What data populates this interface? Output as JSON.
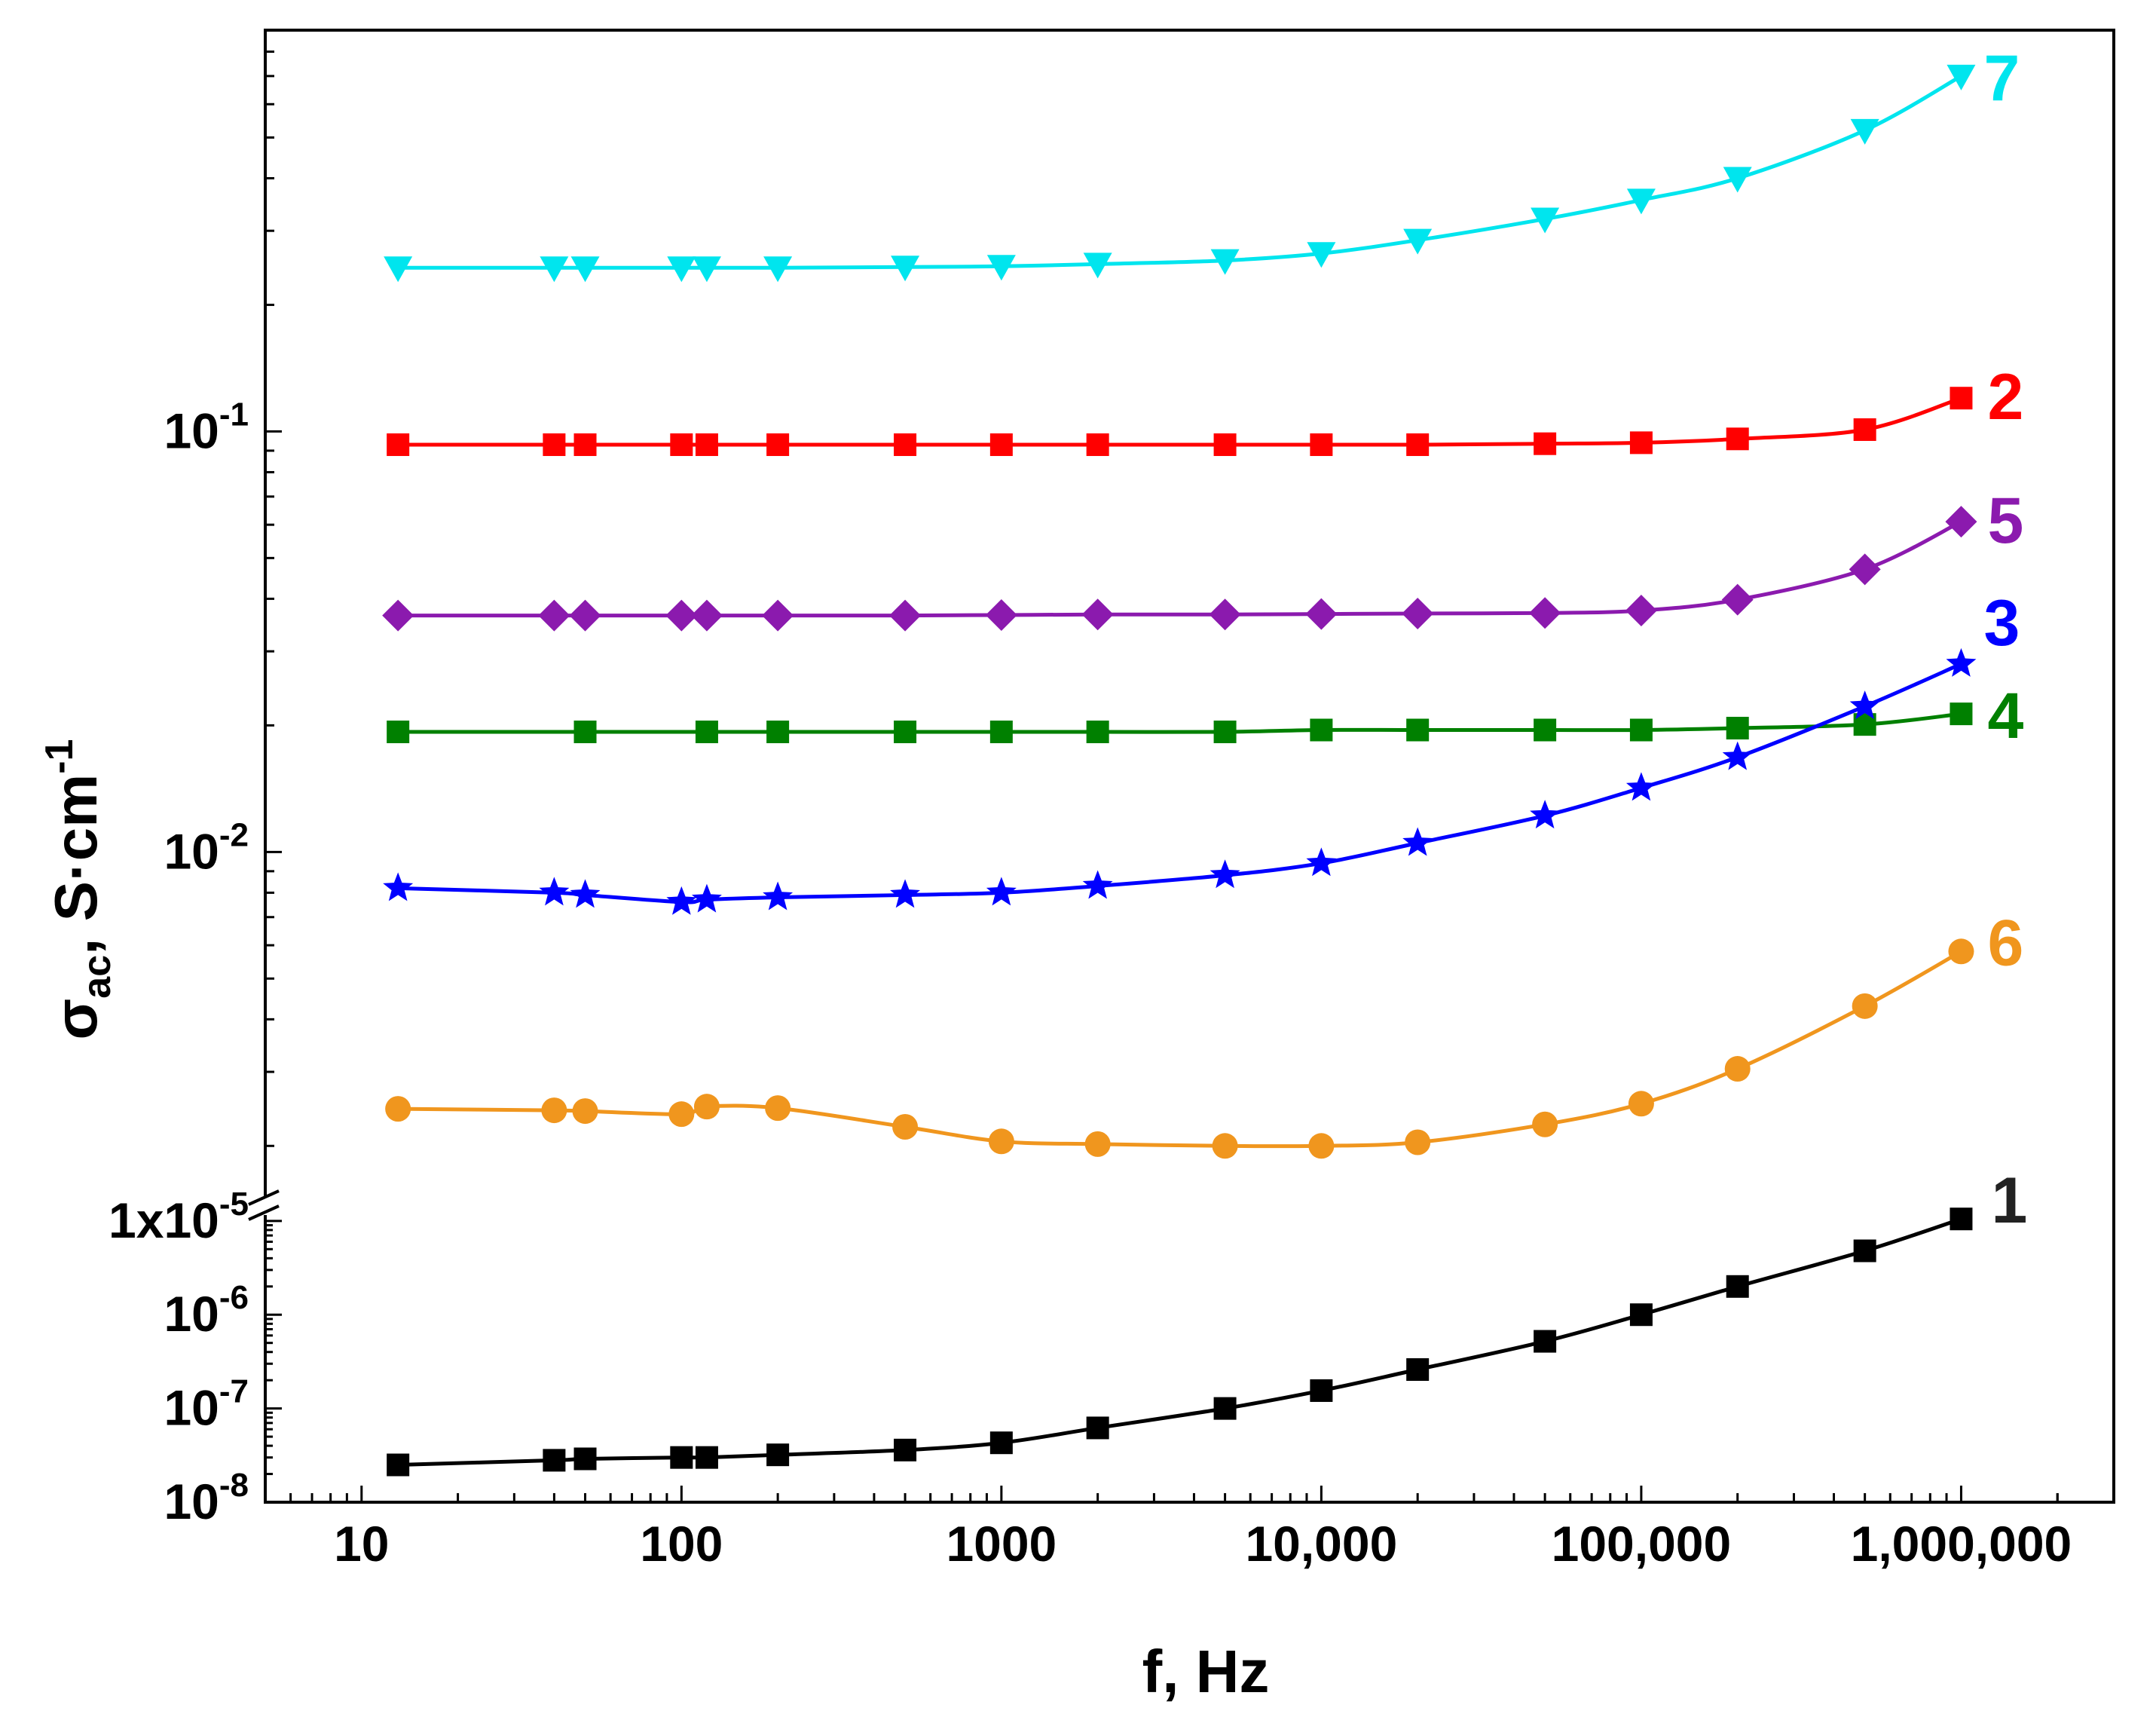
{
  "chart_data": {
    "type": "line",
    "title": "",
    "xlabel": "f, Hz",
    "ylabel": {
      "main": "σ",
      "sub": "ac",
      "rest": ", S·cm",
      "sup": "-1"
    },
    "xscale": "log",
    "yscale": "log (broken axis)",
    "xlim": [
      5,
      3000000
    ],
    "x_ticks": [
      {
        "value": 10,
        "label": "10"
      },
      {
        "value": 100,
        "label": "100"
      },
      {
        "value": 1000,
        "label": "1000"
      },
      {
        "value": 10000,
        "label": "10,000"
      },
      {
        "value": 100000,
        "label": "100,000"
      },
      {
        "value": 1000000,
        "label": "1,000,000"
      }
    ],
    "y_upper": {
      "ylim": [
        0.0015,
        0.9
      ],
      "ticks": [
        {
          "value": 0.1,
          "base": "10",
          "exp": "-1"
        },
        {
          "value": 0.01,
          "base": "10",
          "exp": "-2"
        }
      ]
    },
    "y_lower": {
      "ylim": [
        1e-08,
        1.2e-05
      ],
      "ticks": [
        {
          "value": 1e-05,
          "base": "1x10",
          "exp": "-5"
        },
        {
          "value": 1e-06,
          "base": "10",
          "exp": "-6"
        },
        {
          "value": 1e-07,
          "base": "10",
          "exp": "-7"
        },
        {
          "value": 1e-08,
          "base": "10",
          "exp": "-8"
        }
      ]
    },
    "series": [
      {
        "name": "7",
        "color": "#00e5ee",
        "marker": "triangle-down",
        "panel": "upper",
        "x": [
          13,
          40,
          50,
          100,
          120,
          200,
          500,
          1000,
          2000,
          5000,
          10000,
          20000,
          50000,
          100000,
          200000,
          500000,
          1000000
        ],
        "values": [
          0.245,
          0.245,
          0.245,
          0.245,
          0.245,
          0.245,
          0.246,
          0.247,
          0.25,
          0.255,
          0.265,
          0.285,
          0.32,
          0.355,
          0.4,
          0.52,
          0.7
        ]
      },
      {
        "name": "2",
        "color": "#ff0000",
        "marker": "square",
        "panel": "upper",
        "x": [
          13,
          40,
          50,
          100,
          120,
          200,
          500,
          1000,
          2000,
          5000,
          10000,
          20000,
          50000,
          100000,
          200000,
          500000,
          1000000
        ],
        "values": [
          0.093,
          0.093,
          0.093,
          0.093,
          0.093,
          0.093,
          0.093,
          0.093,
          0.093,
          0.093,
          0.093,
          0.093,
          0.0935,
          0.094,
          0.096,
          0.101,
          0.12
        ]
      },
      {
        "name": "5",
        "color": "#8b1aae",
        "marker": "diamond",
        "panel": "upper",
        "x": [
          13,
          40,
          50,
          100,
          120,
          200,
          500,
          1000,
          2000,
          5000,
          10000,
          20000,
          50000,
          100000,
          200000,
          500000,
          1000000
        ],
        "values": [
          0.0365,
          0.0365,
          0.0365,
          0.0365,
          0.0365,
          0.0365,
          0.0365,
          0.0366,
          0.0367,
          0.0367,
          0.0368,
          0.0369,
          0.037,
          0.0375,
          0.0398,
          0.047,
          0.061
        ]
      },
      {
        "name": "4",
        "color": "#008000",
        "marker": "square",
        "panel": "upper",
        "x": [
          13,
          50,
          120,
          200,
          500,
          1000,
          2000,
          5000,
          10000,
          20000,
          50000,
          100000,
          200000,
          500000,
          1000000
        ],
        "values": [
          0.0193,
          0.0193,
          0.0193,
          0.0193,
          0.0193,
          0.0193,
          0.0193,
          0.0193,
          0.0195,
          0.0195,
          0.0195,
          0.0195,
          0.0197,
          0.0201,
          0.0213
        ]
      },
      {
        "name": "3",
        "color": "#0000ff",
        "marker": "star",
        "panel": "upper",
        "x": [
          13,
          40,
          50,
          100,
          120,
          200,
          500,
          1000,
          2000,
          5000,
          10000,
          20000,
          50000,
          100000,
          200000,
          500000,
          1000000
        ],
        "values": [
          0.0082,
          0.008,
          0.0079,
          0.0076,
          0.0077,
          0.0078,
          0.0079,
          0.008,
          0.0083,
          0.0088,
          0.0094,
          0.0105,
          0.0122,
          0.0142,
          0.0168,
          0.0222,
          0.028
        ]
      },
      {
        "name": "6",
        "color": "#f0961e",
        "marker": "circle",
        "panel": "upper",
        "x": [
          13,
          40,
          50,
          100,
          120,
          200,
          500,
          1000,
          2000,
          5000,
          10000,
          20000,
          50000,
          100000,
          200000,
          500000,
          1000000
        ],
        "values": [
          0.00245,
          0.00243,
          0.00242,
          0.00238,
          0.00248,
          0.00246,
          0.00222,
          0.00205,
          0.00202,
          0.002,
          0.002,
          0.00204,
          0.00225,
          0.00252,
          0.00305,
          0.0043,
          0.0058
        ]
      },
      {
        "name": "1",
        "color": "#000000",
        "marker": "square",
        "panel": "lower",
        "x": [
          13,
          40,
          50,
          100,
          120,
          200,
          500,
          1000,
          2000,
          5000,
          10000,
          20000,
          50000,
          100000,
          200000,
          500000,
          1000000
        ],
        "values": [
          2.5e-08,
          2.8e-08,
          2.9e-08,
          3e-08,
          3e-08,
          3.2e-08,
          3.6e-08,
          4.3e-08,
          6.2e-08,
          1e-07,
          1.55e-07,
          2.6e-07,
          5.2e-07,
          1e-06,
          2e-06,
          4.8e-06,
          1.05e-05
        ]
      }
    ]
  }
}
